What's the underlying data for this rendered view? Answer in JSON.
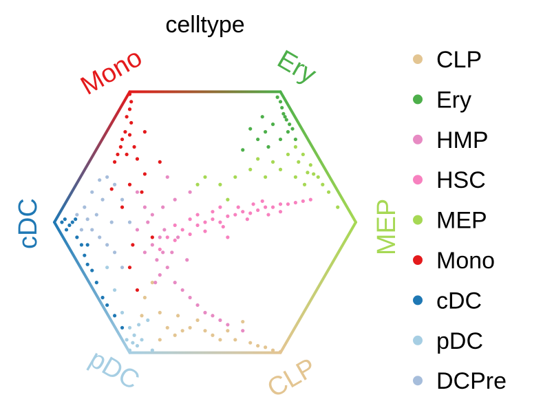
{
  "chart_data": {
    "type": "scatter",
    "title": "celltype",
    "layout": "hexagonal simplex projection",
    "vertices": [
      {
        "label": "Mono",
        "color": "#e41a1c"
      },
      {
        "label": "Ery",
        "color": "#4daf4a"
      },
      {
        "label": "MEP",
        "color": "#a6d854"
      },
      {
        "label": "CLP",
        "color": "#e3c592"
      },
      {
        "label": "pDC",
        "color": "#a6cee3"
      },
      {
        "label": "cDC",
        "color": "#1f78b4"
      }
    ],
    "legend_position": "right",
    "series": [
      {
        "name": "CLP",
        "color": "#e3c592",
        "points": [
          [
            -0.3,
            -0.6
          ],
          [
            -0.25,
            -0.7
          ],
          [
            -0.2,
            -0.75
          ],
          [
            -0.15,
            -0.72
          ],
          [
            -0.1,
            -0.7
          ],
          [
            0,
            -0.72
          ],
          [
            0.05,
            -0.75
          ],
          [
            0.1,
            -0.78
          ],
          [
            0.15,
            -0.72
          ],
          [
            0.2,
            -0.78
          ],
          [
            0.3,
            -0.8
          ],
          [
            0.35,
            -0.82
          ],
          [
            0.4,
            -0.83
          ],
          [
            0.45,
            -0.85
          ],
          [
            0.5,
            -0.86
          ],
          [
            -0.35,
            -0.4
          ],
          [
            -0.4,
            -0.5
          ],
          [
            -0.3,
            -0.78
          ],
          [
            -0.42,
            -0.62
          ],
          [
            0.25,
            -0.66
          ],
          [
            -0.05,
            -0.65
          ],
          [
            -0.18,
            -0.62
          ]
        ]
      },
      {
        "name": "Ery",
        "color": "#4daf4a",
        "points": [
          [
            0.48,
            0.83
          ],
          [
            0.5,
            0.8
          ],
          [
            0.51,
            0.76
          ],
          [
            0.52,
            0.72
          ],
          [
            0.54,
            0.68
          ],
          [
            0.56,
            0.65
          ],
          [
            0.58,
            0.62
          ],
          [
            0.53,
            0.7
          ],
          [
            0.55,
            0.6
          ],
          [
            0.45,
            0.65
          ],
          [
            0.4,
            0.6
          ],
          [
            0.35,
            0.55
          ],
          [
            0.42,
            0.5
          ],
          [
            0.3,
            0.62
          ],
          [
            0.5,
            0.55
          ],
          [
            0.6,
            0.55
          ],
          [
            0.25,
            0.48
          ],
          [
            0.38,
            0.7
          ]
        ]
      },
      {
        "name": "HMP",
        "color": "#e78ac3",
        "points": [
          [
            -0.3,
            -0.1
          ],
          [
            -0.28,
            -0.2
          ],
          [
            -0.32,
            -0.25
          ],
          [
            -0.25,
            -0.3
          ],
          [
            -0.3,
            -0.35
          ],
          [
            -0.22,
            -0.2
          ],
          [
            -0.35,
            -0.15
          ],
          [
            -0.27,
            -0.05
          ],
          [
            -0.38,
            0.0
          ],
          [
            -0.4,
            0.1
          ],
          [
            -0.45,
            0.2
          ],
          [
            -0.35,
            0.05
          ],
          [
            -0.2,
            -0.4
          ],
          [
            -0.15,
            -0.45
          ],
          [
            -0.1,
            -0.5
          ],
          [
            -0.05,
            -0.55
          ],
          [
            0.0,
            -0.6
          ],
          [
            0.05,
            -0.62
          ],
          [
            0.1,
            -0.65
          ],
          [
            0.15,
            -0.68
          ],
          [
            0.25,
            -0.72
          ],
          [
            -0.18,
            -0.1
          ],
          [
            -0.33,
            -0.4
          ],
          [
            -0.12,
            -0.25
          ],
          [
            -0.4,
            -0.2
          ],
          [
            -0.2,
            0.15
          ],
          [
            -0.1,
            0.2
          ],
          [
            -0.25,
            0.3
          ],
          [
            -0.28,
            0.1
          ],
          [
            -0.45,
            -0.05
          ]
        ]
      },
      {
        "name": "HSC",
        "color": "#f781bf",
        "points": [
          [
            -0.3,
            -0.18
          ],
          [
            -0.25,
            -0.1
          ],
          [
            -0.2,
            -0.12
          ],
          [
            -0.15,
            -0.05
          ],
          [
            -0.1,
            -0.08
          ],
          [
            -0.05,
            -0.02
          ],
          [
            0,
            0
          ],
          [
            0.05,
            0.02
          ],
          [
            0.1,
            0.0
          ],
          [
            0.15,
            0.04
          ],
          [
            0.2,
            0.05
          ],
          [
            0.25,
            0.07
          ],
          [
            0.3,
            0.06
          ],
          [
            0.35,
            0.08
          ],
          [
            0.4,
            0.1
          ],
          [
            0.45,
            0.1
          ],
          [
            0.5,
            0.12
          ],
          [
            0.55,
            0.12
          ],
          [
            0.6,
            0.13
          ],
          [
            0.65,
            0.14
          ],
          [
            0.05,
            0.07
          ],
          [
            0.12,
            -0.03
          ],
          [
            0.22,
            0.1
          ],
          [
            0.32,
            0.12
          ],
          [
            0.42,
            0.05
          ],
          [
            -0.05,
            0.05
          ],
          [
            -0.2,
            -0.02
          ],
          [
            0.0,
            -0.06
          ],
          [
            0.28,
            0.02
          ],
          [
            0.5,
            0.07
          ],
          [
            0.15,
            -0.1
          ],
          [
            0.1,
            0.1
          ],
          [
            -0.1,
            0.02
          ],
          [
            0.38,
            0.14
          ],
          [
            0.7,
            0.15
          ]
        ]
      },
      {
        "name": "MEP",
        "color": "#a6d854",
        "points": [
          [
            0.6,
            0.5
          ],
          [
            0.65,
            0.45
          ],
          [
            0.7,
            0.38
          ],
          [
            0.72,
            0.32
          ],
          [
            0.75,
            0.3
          ],
          [
            0.68,
            0.33
          ],
          [
            0.78,
            0.25
          ],
          [
            0.82,
            0.2
          ],
          [
            0.88,
            0.1
          ],
          [
            0.62,
            0.4
          ],
          [
            0.55,
            0.45
          ],
          [
            0.5,
            0.35
          ],
          [
            0.45,
            0.4
          ],
          [
            0.4,
            0.3
          ],
          [
            0.3,
            0.35
          ],
          [
            0.2,
            0.3
          ],
          [
            0.1,
            0.25
          ],
          [
            0.0,
            0.3
          ],
          [
            -0.05,
            0.25
          ],
          [
            0.6,
            0.3
          ],
          [
            0.66,
            0.25
          ],
          [
            0.35,
            0.42
          ],
          [
            0.15,
            0.15
          ]
        ]
      },
      {
        "name": "Mono",
        "color": "#e41a1c",
        "points": [
          [
            -0.5,
            0.85
          ],
          [
            -0.49,
            0.8
          ],
          [
            -0.5,
            0.75
          ],
          [
            -0.52,
            0.7
          ],
          [
            -0.49,
            0.66
          ],
          [
            -0.53,
            0.6
          ],
          [
            -0.55,
            0.55
          ],
          [
            -0.5,
            0.58
          ],
          [
            -0.58,
            0.45
          ],
          [
            -0.6,
            0.4
          ],
          [
            -0.47,
            0.5
          ],
          [
            -0.45,
            0.42
          ],
          [
            -0.52,
            0.45
          ],
          [
            -0.56,
            0.5
          ],
          [
            -0.4,
            0.6
          ],
          [
            -0.42,
            0.2
          ],
          [
            -0.5,
            0.25
          ],
          [
            -0.55,
            0.1
          ],
          [
            -0.48,
            -0.15
          ],
          [
            -0.5,
            -0.3
          ],
          [
            -0.45,
            -0.45
          ],
          [
            -0.3,
            0.4
          ],
          [
            -0.4,
            0.32
          ],
          [
            -0.62,
            0.22
          ],
          [
            -0.35,
            -0.1
          ]
        ]
      },
      {
        "name": "cDC",
        "color": "#1f78b4",
        "points": [
          [
            -0.95,
            0.0
          ],
          [
            -0.93,
            0.02
          ],
          [
            -0.9,
            -0.02
          ],
          [
            -0.92,
            -0.05
          ],
          [
            -0.88,
            0.0
          ],
          [
            -0.85,
            -0.1
          ],
          [
            -0.82,
            -0.15
          ],
          [
            -0.8,
            -0.22
          ],
          [
            -0.78,
            -0.28
          ],
          [
            -0.75,
            -0.32
          ],
          [
            -0.72,
            -0.4
          ],
          [
            -0.68,
            -0.5
          ],
          [
            -0.65,
            -0.55
          ],
          [
            -0.6,
            -0.62
          ],
          [
            -0.55,
            -0.7
          ],
          [
            -0.86,
            0.02
          ],
          [
            -0.78,
            -0.15
          ]
        ]
      },
      {
        "name": "pDC",
        "color": "#a6cee3",
        "points": [
          [
            -0.5,
            -0.85
          ],
          [
            -0.48,
            -0.8
          ],
          [
            -0.45,
            -0.82
          ],
          [
            -0.52,
            -0.78
          ],
          [
            -0.47,
            -0.75
          ],
          [
            -0.42,
            -0.78
          ],
          [
            -0.5,
            -0.7
          ],
          [
            -0.55,
            -0.6
          ],
          [
            -0.38,
            -0.65
          ],
          [
            -0.44,
            -0.68
          ],
          [
            -0.35,
            -0.85
          ],
          [
            -0.6,
            -0.45
          ],
          [
            -0.65,
            -0.3
          ]
        ]
      },
      {
        "name": "DCPre",
        "color": "#a6bddb",
        "points": [
          [
            -0.85,
            0.05
          ],
          [
            -0.8,
            0.1
          ],
          [
            -0.78,
            0.02
          ],
          [
            -0.75,
            0.2
          ],
          [
            -0.7,
            0.28
          ],
          [
            -0.68,
            0.15
          ],
          [
            -0.72,
            0.05
          ],
          [
            -0.65,
            0.3
          ],
          [
            -0.6,
            0.25
          ],
          [
            -0.62,
            0.0
          ],
          [
            -0.7,
            -0.1
          ],
          [
            -0.6,
            -0.2
          ],
          [
            -0.55,
            -0.3
          ],
          [
            -0.65,
            -0.15
          ],
          [
            -0.5,
            0.0
          ],
          [
            -0.55,
            0.15
          ],
          [
            -0.75,
            -0.05
          ],
          [
            -0.82,
            -0.05
          ]
        ]
      }
    ]
  }
}
